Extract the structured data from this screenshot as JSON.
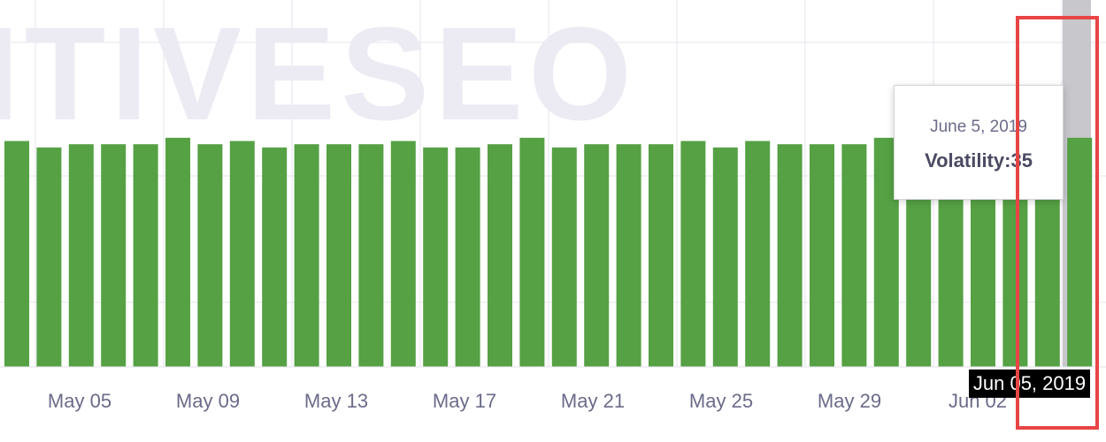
{
  "watermark": "ITIVESEO",
  "chart_data": {
    "type": "bar",
    "x_tick_labels": [
      "May 05",
      "May 09",
      "May 13",
      "May 17",
      "May 21",
      "May 25",
      "May 29",
      "Jun 02"
    ],
    "values": [
      35,
      34,
      34.5,
      34.5,
      34.5,
      35.5,
      34.5,
      35,
      34,
      34.5,
      34.5,
      34.5,
      35,
      34,
      34,
      34.5,
      35.5,
      34,
      34.5,
      34.5,
      34.5,
      35,
      34,
      35,
      34.5,
      34.5,
      34.5,
      35.5,
      35,
      35,
      35,
      35,
      35,
      35.5
    ],
    "bar_color": "#55a144",
    "grid": true
  },
  "tooltip": {
    "date": "June 5, 2019",
    "label": "Volatility:",
    "value": "35"
  },
  "crosshair_date": "Jun 05, 2019",
  "colors": {
    "highlight": "#e84545",
    "crosshair": "#c7c7cc"
  }
}
